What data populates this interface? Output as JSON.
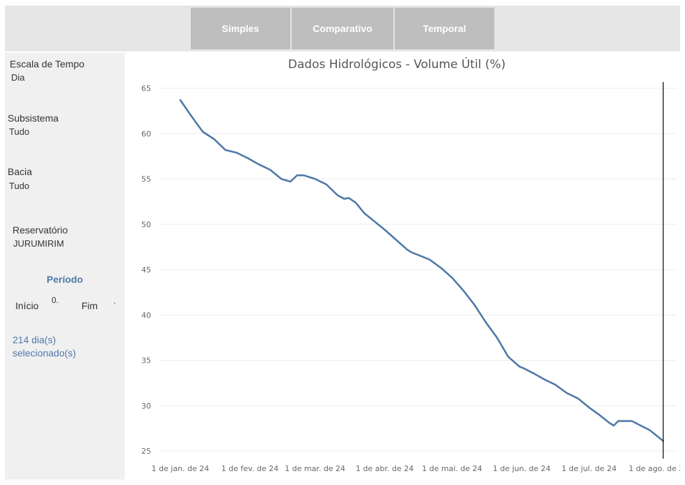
{
  "tabs": [
    {
      "label": "Simples"
    },
    {
      "label": "Comparativo"
    },
    {
      "label": "Temporal"
    }
  ],
  "filters": {
    "escala": {
      "label": "Escala de Tempo",
      "value": "Dia"
    },
    "subsistema": {
      "label": "Subsistema",
      "value": "Tudo"
    },
    "bacia": {
      "label": "Bacia",
      "value": "Tudo"
    },
    "reservatorio": {
      "label": "Reservatório",
      "value": "JURUMIRIM"
    }
  },
  "periodo": {
    "title": "Período",
    "inicio_label": "Início",
    "inicio_value": "0.",
    "fim_label": "Fim",
    "fim_value": ".",
    "dias_line1": "214 dia(s)",
    "dias_line2": "selecionado(s)"
  },
  "colors": {
    "accent": "#4e79a7",
    "line": "#4e79a7",
    "tab": "#bebebe"
  },
  "chart_data": {
    "type": "line",
    "title": "Dados Hidrológicos - Volume Útil (%)",
    "xlabel": "",
    "ylabel": "",
    "ylim": [
      25,
      65
    ],
    "yticks": [
      25,
      30,
      35,
      40,
      45,
      50,
      55,
      60,
      65
    ],
    "xlim": [
      "2023-12-23",
      "2024-08-09"
    ],
    "xticks": [
      {
        "date": "2024-01-01",
        "label": "1 de jan. de 24"
      },
      {
        "date": "2024-02-01",
        "label": "1 de fev. de 24"
      },
      {
        "date": "2024-03-01",
        "label": "1 de mar. de 24"
      },
      {
        "date": "2024-04-01",
        "label": "1 de abr. de 24"
      },
      {
        "date": "2024-05-01",
        "label": "1 de mai. de 24"
      },
      {
        "date": "2024-06-01",
        "label": "1 de jun. de 24"
      },
      {
        "date": "2024-07-01",
        "label": "1 de jul. de 24"
      },
      {
        "date": "2024-08-01",
        "label": "1 de ago. de 24"
      }
    ],
    "grid": true,
    "reference_line": "2024-08-03",
    "series": [
      {
        "points": [
          [
            "2024-01-01",
            63.7
          ],
          [
            "2024-01-06",
            61.9
          ],
          [
            "2024-01-11",
            60.2
          ],
          [
            "2024-01-16",
            59.4
          ],
          [
            "2024-01-21",
            58.2
          ],
          [
            "2024-01-26",
            57.9
          ],
          [
            "2024-01-31",
            57.3
          ],
          [
            "2024-02-05",
            56.6
          ],
          [
            "2024-02-10",
            56.0
          ],
          [
            "2024-02-15",
            55.0
          ],
          [
            "2024-02-19",
            54.7
          ],
          [
            "2024-02-22",
            55.4
          ],
          [
            "2024-02-25",
            55.4
          ],
          [
            "2024-03-01",
            55.0
          ],
          [
            "2024-03-06",
            54.4
          ],
          [
            "2024-03-11",
            53.2
          ],
          [
            "2024-03-14",
            52.8
          ],
          [
            "2024-03-16",
            52.9
          ],
          [
            "2024-03-19",
            52.4
          ],
          [
            "2024-03-23",
            51.2
          ],
          [
            "2024-03-27",
            50.4
          ],
          [
            "2024-04-01",
            49.4
          ],
          [
            "2024-04-06",
            48.3
          ],
          [
            "2024-04-11",
            47.2
          ],
          [
            "2024-04-13",
            46.9
          ],
          [
            "2024-04-16",
            46.6
          ],
          [
            "2024-04-21",
            46.1
          ],
          [
            "2024-04-26",
            45.2
          ],
          [
            "2024-05-01",
            44.1
          ],
          [
            "2024-05-06",
            42.7
          ],
          [
            "2024-05-11",
            41.1
          ],
          [
            "2024-05-16",
            39.2
          ],
          [
            "2024-05-21",
            37.5
          ],
          [
            "2024-05-26",
            35.4
          ],
          [
            "2024-05-31",
            34.3
          ],
          [
            "2024-06-02",
            34.1
          ],
          [
            "2024-06-06",
            33.6
          ],
          [
            "2024-06-11",
            32.9
          ],
          [
            "2024-06-16",
            32.3
          ],
          [
            "2024-06-21",
            31.4
          ],
          [
            "2024-06-26",
            30.8
          ],
          [
            "2024-07-01",
            29.8
          ],
          [
            "2024-07-06",
            28.9
          ],
          [
            "2024-07-10",
            28.1
          ],
          [
            "2024-07-12",
            27.8
          ],
          [
            "2024-07-14",
            28.3
          ],
          [
            "2024-07-17",
            28.3
          ],
          [
            "2024-07-20",
            28.3
          ],
          [
            "2024-07-24",
            27.8
          ],
          [
            "2024-07-28",
            27.3
          ],
          [
            "2024-08-03",
            26.1
          ]
        ]
      }
    ]
  }
}
